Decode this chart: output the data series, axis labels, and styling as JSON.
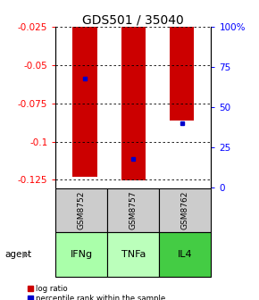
{
  "title": "GDS501 / 35040",
  "samples": [
    "GSM8752",
    "GSM8757",
    "GSM8762"
  ],
  "agents": [
    "IFNg",
    "TNFa",
    "IL4"
  ],
  "log_ratios": [
    -0.123,
    -0.1255,
    -0.086
  ],
  "percentile_ranks": [
    68,
    18,
    40
  ],
  "ylim_left": [
    -0.13,
    -0.025
  ],
  "yticks_left": [
    -0.125,
    -0.1,
    -0.075,
    -0.05,
    -0.025
  ],
  "ytick_labels_left": [
    "-0.125",
    "-0.1",
    "-0.075",
    "-0.05",
    "-0.025"
  ],
  "ytick_labels_right": [
    "0",
    "25",
    "50",
    "75",
    "100%"
  ],
  "bar_color": "#cc0000",
  "dot_color": "#0000cc",
  "sample_box_color": "#cccccc",
  "title_fontsize": 10,
  "tick_fontsize": 7.5,
  "bar_width": 0.5,
  "agent_colors": [
    "#aaffaa",
    "#bbffbb",
    "#44cc44"
  ]
}
